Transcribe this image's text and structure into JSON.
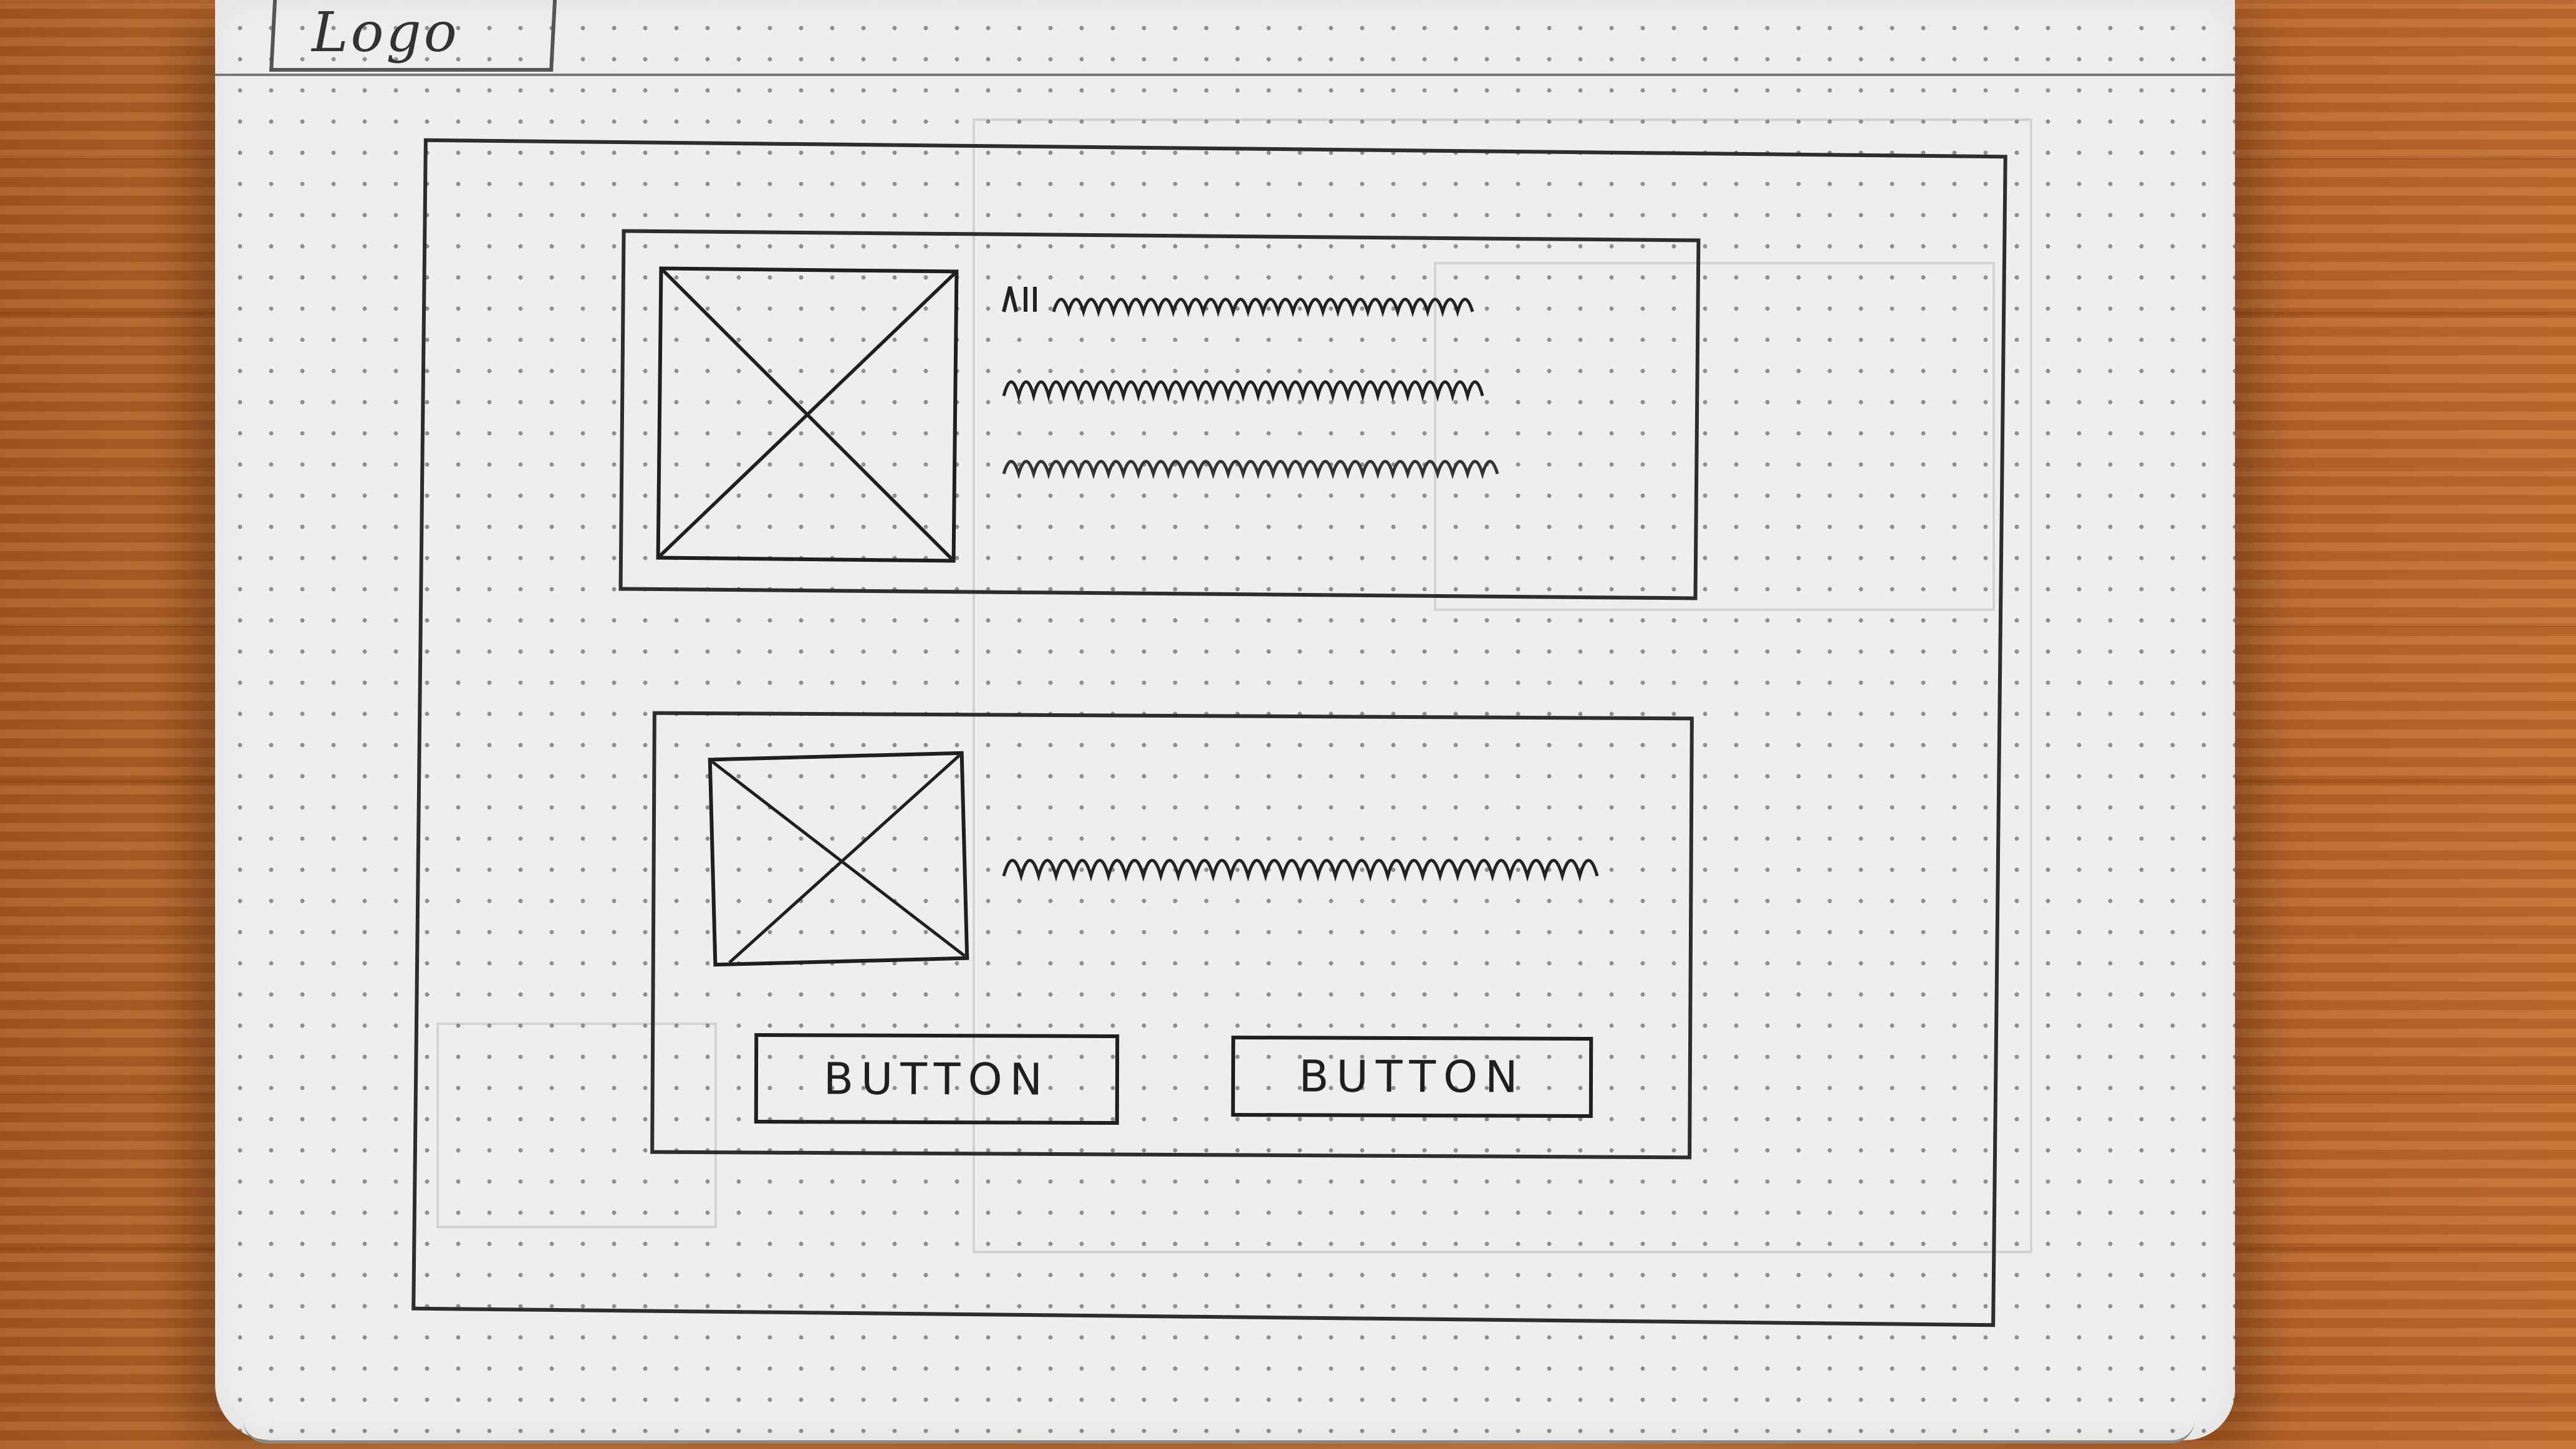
{
  "header": {
    "logo_text": "Logo"
  },
  "sketch": {
    "card_top": {
      "image_placeholder": "image-placeholder",
      "text_lines": 3
    },
    "card_bottom": {
      "image_placeholder": "image-placeholder",
      "text_lines": 1,
      "buttons": [
        {
          "label": "BUTTON"
        },
        {
          "label": "BUTTON"
        }
      ]
    }
  },
  "colors": {
    "ink": "#1f1f1f",
    "paper": "#eeeeec",
    "wood": "#b8652a"
  }
}
